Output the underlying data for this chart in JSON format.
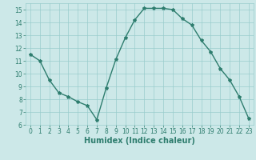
{
  "x": [
    0,
    1,
    2,
    3,
    4,
    5,
    6,
    7,
    8,
    9,
    10,
    11,
    12,
    13,
    14,
    15,
    16,
    17,
    18,
    19,
    20,
    21,
    22,
    23
  ],
  "y": [
    11.5,
    11.0,
    9.5,
    8.5,
    8.2,
    7.8,
    7.5,
    6.4,
    8.9,
    11.1,
    12.8,
    14.2,
    15.1,
    15.1,
    15.1,
    15.0,
    14.3,
    13.8,
    12.6,
    11.7,
    10.4,
    9.5,
    8.2,
    6.5
  ],
  "line_color": "#2e7d6e",
  "marker": "*",
  "marker_size": 3,
  "bg_color": "#cce8e8",
  "grid_color": "#99cccc",
  "xlabel": "Humidex (Indice chaleur)",
  "xlim": [
    -0.5,
    23.5
  ],
  "ylim": [
    6,
    15.5
  ],
  "yticks": [
    6,
    7,
    8,
    9,
    10,
    11,
    12,
    13,
    14,
    15
  ],
  "xticks": [
    0,
    1,
    2,
    3,
    4,
    5,
    6,
    7,
    8,
    9,
    10,
    11,
    12,
    13,
    14,
    15,
    16,
    17,
    18,
    19,
    20,
    21,
    22,
    23
  ],
  "tick_label_size": 5.5,
  "xlabel_fontsize": 7,
  "line_width": 1.0
}
